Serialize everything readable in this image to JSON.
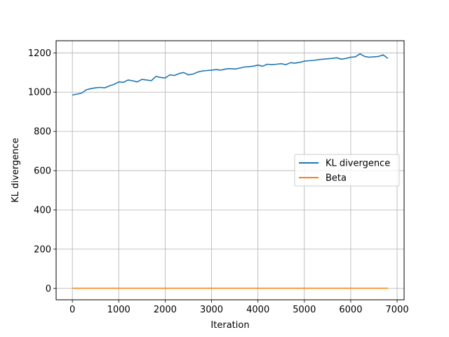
{
  "chart_data": {
    "type": "line",
    "title": "",
    "xlabel": "Iteration",
    "ylabel": "KL divergence",
    "xlim": [
      -350,
      7150
    ],
    "ylim": [
      -58,
      1262
    ],
    "xticks": [
      0,
      1000,
      2000,
      3000,
      4000,
      5000,
      6000,
      7000
    ],
    "yticks": [
      0,
      200,
      400,
      600,
      800,
      1000,
      1200
    ],
    "grid": true,
    "legend_position": "center-right",
    "series": [
      {
        "name": "KL divergence",
        "color": "#1f77b4",
        "x": [
          0,
          100,
          200,
          300,
          400,
          500,
          600,
          700,
          800,
          900,
          1000,
          1100,
          1200,
          1300,
          1400,
          1500,
          1600,
          1700,
          1800,
          1900,
          2000,
          2100,
          2200,
          2300,
          2400,
          2500,
          2600,
          2700,
          2800,
          2900,
          3000,
          3100,
          3200,
          3300,
          3400,
          3500,
          3600,
          3700,
          3800,
          3900,
          4000,
          4100,
          4200,
          4300,
          4400,
          4500,
          4600,
          4700,
          4800,
          4900,
          5000,
          5100,
          5200,
          5300,
          5400,
          5500,
          5600,
          5700,
          5800,
          5900,
          6000,
          6100,
          6200,
          6300,
          6400,
          6500,
          6600,
          6700,
          6800
        ],
        "y": [
          985,
          990,
          995,
          1012,
          1018,
          1022,
          1024,
          1022,
          1032,
          1040,
          1052,
          1050,
          1062,
          1058,
          1052,
          1065,
          1062,
          1058,
          1080,
          1075,
          1072,
          1088,
          1085,
          1095,
          1100,
          1088,
          1092,
          1102,
          1108,
          1110,
          1112,
          1115,
          1112,
          1118,
          1120,
          1118,
          1122,
          1128,
          1130,
          1132,
          1138,
          1132,
          1142,
          1140,
          1142,
          1145,
          1140,
          1150,
          1148,
          1152,
          1158,
          1160,
          1162,
          1165,
          1168,
          1170,
          1172,
          1175,
          1168,
          1172,
          1178,
          1180,
          1195,
          1182,
          1178,
          1180,
          1182,
          1190,
          1172
        ]
      },
      {
        "name": "Beta",
        "color": "#ff7f0e",
        "x": [
          0,
          6800
        ],
        "y": [
          1,
          1
        ]
      }
    ]
  }
}
